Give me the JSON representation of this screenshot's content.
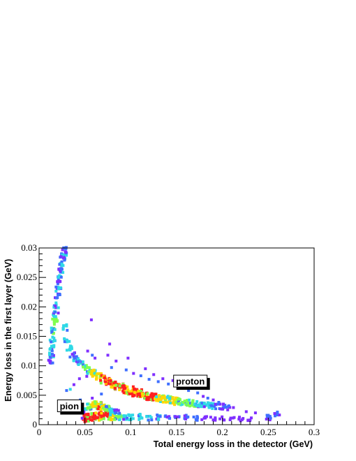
{
  "chart_data": {
    "type": "heatmap",
    "xlabel": "Total energy loss in the detector (GeV)",
    "ylabel": "Energy loss in the first layer (GeV)",
    "xlim": [
      0,
      0.3
    ],
    "ylim": [
      0,
      0.03
    ],
    "x_ticks": [
      0,
      0.05,
      0.1,
      0.15,
      0.2,
      0.25,
      0.3
    ],
    "x_tick_labels": [
      "0",
      "0.05",
      "0.1",
      "0.15",
      "0.2",
      "0.25",
      "0.3"
    ],
    "y_ticks": [
      0,
      0.005,
      0.01,
      0.015,
      0.02,
      0.025,
      0.03
    ],
    "y_tick_labels": [
      "0",
      "0.005",
      "0.01",
      "0.015",
      "0.02",
      "0.025",
      "0.03"
    ],
    "grid": false,
    "colors": {
      "level_1": "#7f2fff",
      "level_2": "#3f6fff",
      "level_3": "#2fd9e6",
      "level_4": "#7fff4f",
      "level_5": "#ffd700",
      "level_6": "#ff2020"
    },
    "annotations": [
      {
        "text": "pion",
        "x": 0.033,
        "y": 0.0032
      },
      {
        "text": "proton",
        "x": 0.165,
        "y": 0.0074
      }
    ],
    "bands": [
      {
        "name": "",
        "points": [
          [
            0.012,
            0.0108,
            2
          ],
          [
            0.013,
            0.0118,
            3
          ],
          [
            0.014,
            0.013,
            3
          ],
          [
            0.015,
            0.0145,
            3
          ],
          [
            0.016,
            0.016,
            4
          ],
          [
            0.017,
            0.0175,
            4
          ],
          [
            0.018,
            0.0188,
            3
          ],
          [
            0.019,
            0.0203,
            3
          ],
          [
            0.02,
            0.0218,
            2
          ],
          [
            0.021,
            0.023,
            3
          ],
          [
            0.022,
            0.0243,
            2
          ],
          [
            0.023,
            0.0255,
            3
          ],
          [
            0.024,
            0.0265,
            2
          ],
          [
            0.025,
            0.0273,
            3
          ],
          [
            0.026,
            0.0282,
            2
          ],
          [
            0.027,
            0.029,
            3
          ],
          [
            0.028,
            0.0297,
            2
          ]
        ]
      },
      {
        "name": "",
        "points": [
          [
            0.028,
            0.0165,
            3
          ],
          [
            0.03,
            0.0145,
            3
          ],
          [
            0.033,
            0.013,
            3
          ],
          [
            0.036,
            0.0118,
            2
          ],
          [
            0.04,
            0.0112,
            3
          ],
          [
            0.045,
            0.0105,
            3
          ],
          [
            0.05,
            0.0098,
            4
          ],
          [
            0.055,
            0.0092,
            4
          ],
          [
            0.06,
            0.0087,
            5
          ],
          [
            0.065,
            0.0082,
            5
          ],
          [
            0.07,
            0.0077,
            6
          ],
          [
            0.075,
            0.0073,
            6
          ],
          [
            0.08,
            0.0069,
            6
          ],
          [
            0.085,
            0.0066,
            6
          ],
          [
            0.09,
            0.0063,
            6
          ],
          [
            0.095,
            0.006,
            6
          ],
          [
            0.1,
            0.0058,
            6
          ],
          [
            0.105,
            0.0055,
            6
          ],
          [
            0.11,
            0.0053,
            6
          ],
          [
            0.115,
            0.0051,
            6
          ],
          [
            0.12,
            0.0049,
            6
          ],
          [
            0.125,
            0.0047,
            6
          ],
          [
            0.13,
            0.0046,
            5
          ],
          [
            0.135,
            0.0044,
            5
          ],
          [
            0.14,
            0.0043,
            5
          ],
          [
            0.145,
            0.0042,
            5
          ],
          [
            0.15,
            0.004,
            5
          ],
          [
            0.155,
            0.0039,
            4
          ],
          [
            0.16,
            0.0038,
            4
          ],
          [
            0.165,
            0.0037,
            4
          ],
          [
            0.17,
            0.0036,
            4
          ],
          [
            0.175,
            0.0035,
            3
          ],
          [
            0.18,
            0.0034,
            3
          ],
          [
            0.185,
            0.0033,
            3
          ],
          [
            0.19,
            0.0032,
            3
          ],
          [
            0.195,
            0.0031,
            2
          ],
          [
            0.2,
            0.003,
            2
          ],
          [
            0.205,
            0.0029,
            2
          ]
        ]
      },
      {
        "name": "",
        "points": [
          [
            0.05,
            0.0011,
            6
          ],
          [
            0.055,
            0.0012,
            6
          ],
          [
            0.06,
            0.0013,
            6
          ],
          [
            0.065,
            0.0014,
            6
          ],
          [
            0.07,
            0.0015,
            6
          ],
          [
            0.075,
            0.0015,
            6
          ],
          [
            0.08,
            0.0014,
            5
          ],
          [
            0.085,
            0.0014,
            4
          ],
          [
            0.09,
            0.0013,
            4
          ],
          [
            0.095,
            0.0013,
            3
          ],
          [
            0.1,
            0.0013,
            3
          ],
          [
            0.11,
            0.0013,
            3
          ],
          [
            0.12,
            0.0012,
            3
          ],
          [
            0.13,
            0.0012,
            3
          ],
          [
            0.14,
            0.0012,
            2
          ],
          [
            0.15,
            0.0012,
            2
          ],
          [
            0.16,
            0.0012,
            2
          ],
          [
            0.17,
            0.0011,
            2
          ],
          [
            0.18,
            0.0011,
            1
          ],
          [
            0.19,
            0.0011,
            1
          ],
          [
            0.2,
            0.0011,
            1
          ],
          [
            0.21,
            0.0011,
            1
          ],
          [
            0.22,
            0.001,
            1
          ],
          [
            0.23,
            0.001,
            1
          ],
          [
            0.25,
            0.0012,
            2
          ],
          [
            0.26,
            0.0018,
            2
          ]
        ]
      },
      {
        "name": "",
        "points": [
          [
            0.05,
            0.0025,
            3
          ],
          [
            0.055,
            0.003,
            4
          ],
          [
            0.06,
            0.0035,
            5
          ],
          [
            0.065,
            0.0033,
            6
          ],
          [
            0.07,
            0.003,
            5
          ],
          [
            0.075,
            0.0028,
            4
          ],
          [
            0.08,
            0.0025,
            3
          ],
          [
            0.085,
            0.0023,
            2
          ]
        ]
      }
    ],
    "scatter_points": [
      [
        0.057,
        0.0178,
        1
      ],
      [
        0.053,
        0.0125,
        1
      ],
      [
        0.058,
        0.0118,
        2
      ],
      [
        0.061,
        0.0113,
        1
      ],
      [
        0.075,
        0.0118,
        1
      ],
      [
        0.077,
        0.0137,
        1
      ],
      [
        0.079,
        0.0097,
        2
      ],
      [
        0.084,
        0.0108,
        1
      ],
      [
        0.095,
        0.0093,
        2
      ],
      [
        0.097,
        0.0113,
        1
      ],
      [
        0.103,
        0.0087,
        1
      ],
      [
        0.111,
        0.0083,
        2
      ],
      [
        0.116,
        0.0095,
        1
      ],
      [
        0.12,
        0.0077,
        2
      ],
      [
        0.125,
        0.0085,
        1
      ],
      [
        0.13,
        0.0073,
        2
      ],
      [
        0.135,
        0.0078,
        1
      ],
      [
        0.141,
        0.0069,
        2
      ],
      [
        0.146,
        0.0075,
        1
      ],
      [
        0.152,
        0.0062,
        2
      ],
      [
        0.157,
        0.0068,
        1
      ],
      [
        0.163,
        0.0058,
        2
      ],
      [
        0.168,
        0.0062,
        1
      ],
      [
        0.173,
        0.0054,
        2
      ],
      [
        0.179,
        0.0048,
        1
      ],
      [
        0.184,
        0.0045,
        2
      ],
      [
        0.19,
        0.0042,
        1
      ],
      [
        0.196,
        0.0038,
        2
      ],
      [
        0.201,
        0.0035,
        1
      ],
      [
        0.207,
        0.0032,
        2
      ],
      [
        0.212,
        0.0029,
        1
      ],
      [
        0.226,
        0.0022,
        1
      ],
      [
        0.236,
        0.002,
        1
      ],
      [
        0.25,
        0.0016,
        2
      ],
      [
        0.257,
        0.0019,
        1
      ],
      [
        0.04,
        0.0035,
        1
      ],
      [
        0.045,
        0.0042,
        2
      ],
      [
        0.04,
        0.0024,
        1
      ],
      [
        0.047,
        0.0011,
        1
      ],
      [
        0.058,
        0.0045,
        1
      ],
      [
        0.068,
        0.0052,
        2
      ],
      [
        0.03,
        0.0058,
        2
      ],
      [
        0.034,
        0.006,
        3
      ],
      [
        0.038,
        0.0068,
        1
      ],
      [
        0.044,
        0.0078,
        1
      ],
      [
        0.052,
        0.0082,
        1
      ]
    ]
  }
}
